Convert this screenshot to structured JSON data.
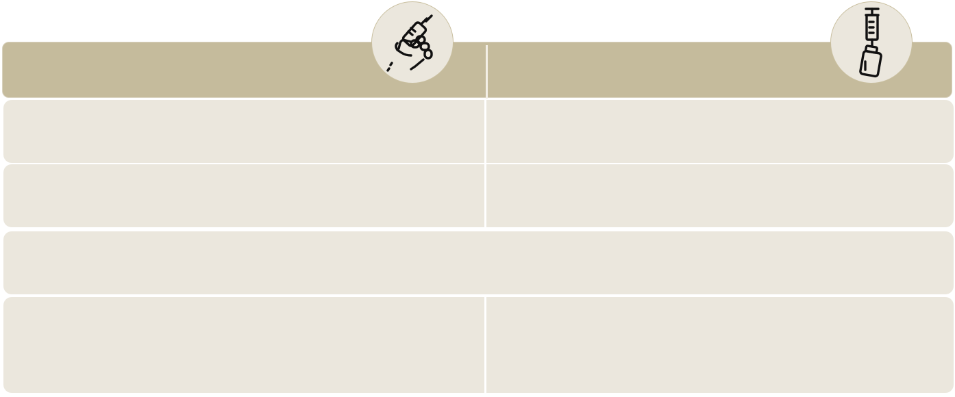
{
  "colors": {
    "header_bg": "#c5bb9c",
    "row_bg": "#ebe7dd",
    "icon_circle_bg": "#ebe7dd",
    "icon_stroke": "#111111"
  },
  "header": {
    "left_title": "",
    "right_title": "",
    "left_icon": "hand-holding-syringe-icon",
    "right_icon": "syringe-and-vial-icon"
  },
  "rows": [
    {
      "left": "",
      "right": ""
    },
    {
      "left": "",
      "right": ""
    },
    {
      "full": ""
    },
    {
      "left": "",
      "right": ""
    }
  ]
}
